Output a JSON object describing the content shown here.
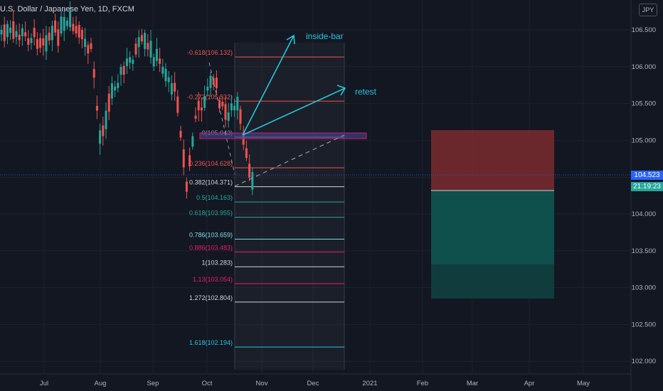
{
  "header": {
    "symbol_title": "U.S. Dollar / Japanese Yen, 1D, FXCM"
  },
  "currency_button": "JPY",
  "price_axis": {
    "labels": [
      "106.500",
      "106.000",
      "105.500",
      "105.000",
      "104.500",
      "104.000",
      "103.500",
      "103.000",
      "102.500",
      "102.000"
    ],
    "values": [
      106.5,
      106.0,
      105.5,
      105.0,
      104.5,
      104.0,
      103.5,
      103.0,
      102.5,
      102.0
    ],
    "current_price": "104.523",
    "countdown": "21:19:23",
    "current_price_color": "#2962ff",
    "countdown_color": "#26a69a"
  },
  "time_axis": {
    "labels": [
      "Jul",
      "Aug",
      "Sep",
      "Oct",
      "Nov",
      "Dec",
      "2021",
      "Feb",
      "Mar",
      "Apr",
      "May"
    ]
  },
  "fibonacci": {
    "levels": [
      {
        "label": "-0.618(106.132)",
        "price": 106.132,
        "color": "#ef5350"
      },
      {
        "label": "-0.272(105.532)",
        "price": 105.532,
        "color": "#ef5350"
      },
      {
        "label": "0(105.043)",
        "price": 105.043,
        "color": "#9598a1"
      },
      {
        "label": "0.236(104.628)",
        "price": 104.628,
        "color": "#ef5350"
      },
      {
        "label": "0.382(104.371)",
        "price": 104.371,
        "color": "#d1d4dc"
      },
      {
        "label": "0.5(104.163)",
        "price": 104.163,
        "color": "#26a69a"
      },
      {
        "label": "0.618(103.955)",
        "price": 103.955,
        "color": "#26a69a"
      },
      {
        "label": "0.786(103.659)",
        "price": 103.659,
        "color": "#80deea"
      },
      {
        "label": "0.886(103.483)",
        "price": 103.483,
        "color": "#e91e63"
      },
      {
        "label": "1(103.283)",
        "price": 103.283,
        "color": "#d1d4dc"
      },
      {
        "label": "1.13(103.054)",
        "price": 103.054,
        "color": "#e91e63"
      },
      {
        "label": "1.272(102.804)",
        "price": 102.804,
        "color": "#d1d4dc"
      },
      {
        "label": "1.618(102.194)",
        "price": 102.194,
        "color": "#26c6da"
      }
    ]
  },
  "annotations": {
    "inside_bar": "inside-bar",
    "retest": "retest"
  },
  "colors": {
    "up": "#26a69a",
    "down": "#ef5350",
    "accent": "#26c6da",
    "background": "#131722"
  }
}
